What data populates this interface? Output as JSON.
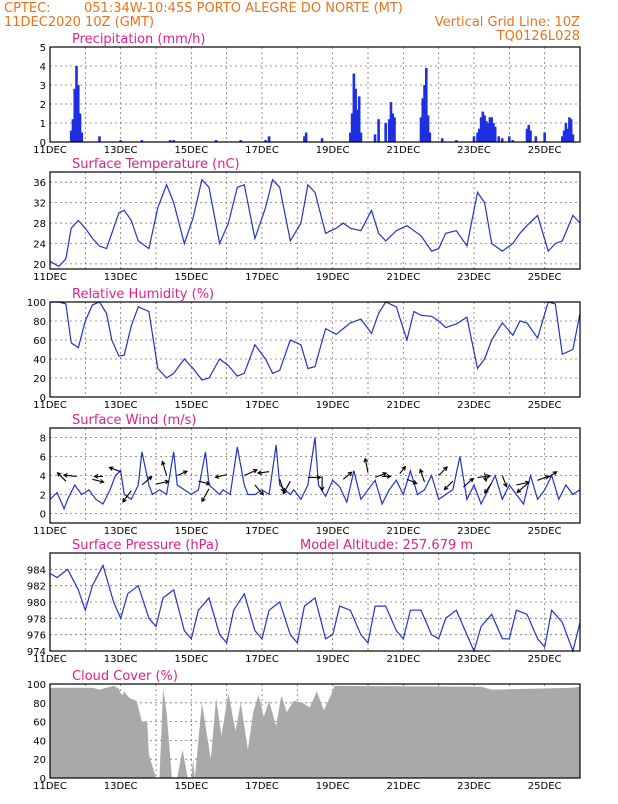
{
  "header": {
    "line1_left": "CPTEC:",
    "line1_center": "051:34W-10:45S  PORTO ALEGRE DO NORTE (MT)",
    "line2_left": "11DEC2020 10Z (GMT)",
    "line2_right": "Vertical Grid Line: 10Z",
    "line3_right": "TQ0126L028"
  },
  "x_ticks": [
    "11DEC",
    "13DEC",
    "15DEC",
    "17DEC",
    "19DEC",
    "21DEC",
    "23DEC",
    "25DEC"
  ],
  "colors": {
    "header": "#e8731a",
    "panel_title": "#e0208a",
    "line": "#2233cc",
    "bar": "#1f2fe0",
    "cloud": "#a9a9a9"
  },
  "chart_data": [
    {
      "type": "bar",
      "title": "Precipitation (mm/h)",
      "ylim": [
        0,
        5
      ],
      "yticks": [
        "0",
        "1",
        "2",
        "3",
        "4",
        "5"
      ],
      "x": [
        "11.6",
        "11.65",
        "11.7",
        "11.75",
        "11.8",
        "11.85",
        "11.9",
        "12.4",
        "13.0",
        "13.6",
        "14.4",
        "14.5",
        "15.7",
        "16.4",
        "17.1",
        "17.2",
        "18.2",
        "18.25",
        "18.7",
        "19.5",
        "19.55",
        "19.6",
        "19.65",
        "19.7",
        "19.75",
        "19.8",
        "20.2",
        "20.3",
        "20.5",
        "20.6",
        "20.65",
        "20.7",
        "20.75",
        "21.5",
        "21.55",
        "21.6",
        "21.65",
        "21.7",
        "21.75",
        "22.1",
        "22.5",
        "23.0",
        "23.1",
        "23.15",
        "23.2",
        "23.25",
        "23.3",
        "23.35",
        "23.4",
        "23.45",
        "23.5",
        "23.55",
        "23.6",
        "23.7",
        "23.8",
        "24.0",
        "24.1",
        "24.5",
        "24.55",
        "24.6",
        "24.75",
        "25.0",
        "25.5",
        "25.55",
        "25.6",
        "25.65",
        "25.7",
        "25.75",
        "25.8"
      ],
      "values": [
        0.6,
        1.2,
        2.8,
        4.0,
        3.0,
        1.5,
        0.5,
        0.3,
        0.1,
        0.1,
        0.1,
        0.1,
        0.1,
        0.1,
        0.1,
        0.3,
        0.3,
        0.5,
        0.2,
        0.5,
        1.5,
        3.6,
        2.8,
        1.7,
        2.4,
        0.5,
        0.4,
        1.2,
        1.0,
        1.2,
        2.1,
        1.5,
        1.3,
        1.3,
        2.3,
        3.0,
        3.9,
        1.4,
        0.5,
        0.2,
        0.1,
        0.3,
        0.5,
        0.7,
        1.3,
        1.6,
        1.4,
        1.1,
        1.0,
        1.3,
        1.3,
        1.0,
        0.8,
        0.3,
        0.2,
        0.3,
        0.1,
        0.7,
        0.9,
        0.6,
        0.3,
        0.5,
        0.3,
        0.6,
        1.0,
        0.7,
        1.3,
        1.2,
        0.4
      ]
    },
    {
      "type": "line",
      "title": "Surface Temperature (nC)",
      "ylim": [
        19,
        38
      ],
      "yticks": [
        "20",
        "24",
        "28",
        "32",
        "36"
      ],
      "x": [
        11.0,
        11.25,
        11.45,
        11.6,
        11.8,
        12.0,
        12.2,
        12.4,
        12.6,
        12.75,
        12.95,
        13.1,
        13.3,
        13.5,
        13.8,
        14.05,
        14.3,
        14.5,
        14.8,
        15.05,
        15.3,
        15.5,
        15.8,
        16.05,
        16.3,
        16.5,
        16.8,
        17.1,
        17.3,
        17.5,
        17.8,
        18.1,
        18.3,
        18.5,
        18.8,
        19.1,
        19.3,
        19.5,
        19.8,
        20.1,
        20.3,
        20.5,
        20.8,
        21.1,
        21.3,
        21.5,
        21.8,
        22.0,
        22.2,
        22.5,
        22.8,
        23.1,
        23.3,
        23.5,
        23.8,
        24.1,
        24.3,
        24.5,
        24.8,
        25.1,
        25.3,
        25.5,
        25.8,
        26.0
      ],
      "values": [
        20.5,
        19.5,
        21,
        27,
        28.5,
        27,
        25,
        23.5,
        23,
        26,
        30,
        30.5,
        28.5,
        24.5,
        23,
        31,
        35.5,
        32,
        24,
        29,
        36.5,
        35,
        24,
        28,
        35,
        35.5,
        25,
        31,
        36.5,
        35,
        24.5,
        28,
        35.5,
        34,
        26,
        27,
        28,
        27,
        26.5,
        30.5,
        26,
        24.5,
        26.5,
        27.5,
        26.5,
        25.5,
        22.5,
        23,
        26,
        26.5,
        23.5,
        34,
        32,
        24,
        22.5,
        24,
        26,
        27.5,
        29.5,
        22.5,
        24,
        24.5,
        29.5,
        28
      ]
    },
    {
      "type": "line",
      "title": "Relative Humidity (%)",
      "ylim": [
        0,
        100
      ],
      "yticks": [
        "0",
        "20",
        "40",
        "60",
        "80",
        "100"
      ],
      "x": [
        11.0,
        11.25,
        11.45,
        11.6,
        11.8,
        12.0,
        12.2,
        12.4,
        12.6,
        12.75,
        12.95,
        13.1,
        13.3,
        13.5,
        13.8,
        14.05,
        14.3,
        14.5,
        14.8,
        15.05,
        15.3,
        15.5,
        15.8,
        16.05,
        16.3,
        16.5,
        16.8,
        17.1,
        17.3,
        17.5,
        17.8,
        18.1,
        18.3,
        18.5,
        18.8,
        19.1,
        19.3,
        19.5,
        19.8,
        20.1,
        20.3,
        20.5,
        20.8,
        21.1,
        21.3,
        21.5,
        21.8,
        22.0,
        22.2,
        22.5,
        22.8,
        23.1,
        23.3,
        23.5,
        23.8,
        24.1,
        24.3,
        24.5,
        24.8,
        25.1,
        25.3,
        25.5,
        25.8,
        26.0
      ],
      "values": [
        100,
        100,
        98,
        57,
        52,
        80,
        97,
        100,
        88,
        60,
        43,
        44,
        75,
        95,
        90,
        30,
        20,
        25,
        40,
        30,
        18,
        20,
        40,
        33,
        22,
        25,
        55,
        40,
        25,
        28,
        60,
        55,
        30,
        32,
        72,
        66,
        72,
        78,
        82,
        67,
        88,
        100,
        95,
        60,
        90,
        86,
        85,
        80,
        73,
        77,
        84,
        30,
        40,
        60,
        78,
        65,
        80,
        78,
        62,
        100,
        98,
        45,
        50,
        88
      ]
    },
    {
      "type": "line",
      "title": "Surface Wind (m/s)",
      "ylim": [
        -1,
        9
      ],
      "yticks": [
        "0",
        "2",
        "4",
        "6",
        "8"
      ],
      "x": [
        11.0,
        11.2,
        11.4,
        11.5,
        11.7,
        11.9,
        12.1,
        12.3,
        12.5,
        12.7,
        12.85,
        13.0,
        13.1,
        13.3,
        13.5,
        13.6,
        13.8,
        13.9,
        14.1,
        14.3,
        14.5,
        14.6,
        14.8,
        15.0,
        15.2,
        15.4,
        15.5,
        15.8,
        15.9,
        16.1,
        16.3,
        16.5,
        16.6,
        16.8,
        17.0,
        17.2,
        17.4,
        17.5,
        17.8,
        17.9,
        18.1,
        18.3,
        18.5,
        18.6,
        18.8,
        19.0,
        19.2,
        19.4,
        19.6,
        19.8,
        20.0,
        20.2,
        20.4,
        20.6,
        20.8,
        21.0,
        21.2,
        21.4,
        21.6,
        21.8,
        22.0,
        22.2,
        22.4,
        22.6,
        22.8,
        23.0,
        23.2,
        23.4,
        23.6,
        23.8,
        24.0,
        24.2,
        24.4,
        24.6,
        24.8,
        25.0,
        25.2,
        25.4,
        25.6,
        25.8,
        26.0
      ],
      "values": [
        1.5,
        2.2,
        0.5,
        1.5,
        3.0,
        2.0,
        2.5,
        1.5,
        1.0,
        2.5,
        4.0,
        4.5,
        2.0,
        1.5,
        3.0,
        6.5,
        3.0,
        2.0,
        2.5,
        2.0,
        6.5,
        3.0,
        2.5,
        2.0,
        2.5,
        6.5,
        3.0,
        2.0,
        2.5,
        2.0,
        7.0,
        3.0,
        2.0,
        2.0,
        2.5,
        2.0,
        7.2,
        3.0,
        2.0,
        2.5,
        1.5,
        3.0,
        8.0,
        3.0,
        1.8,
        3.5,
        2.8,
        1.2,
        4.5,
        1.5,
        2.5,
        3.5,
        1.0,
        2.5,
        3.5,
        2.0,
        4.5,
        2.0,
        2.5,
        4.0,
        1.5,
        2.0,
        2.5,
        6.0,
        1.5,
        3.0,
        1.0,
        2.5,
        4.0,
        1.5,
        3.0,
        2.0,
        1.0,
        4.0,
        1.5,
        2.5,
        4.0,
        1.5,
        3.0,
        2.0,
        2.5
      ]
    },
    {
      "type": "line",
      "title": "Surface Pressure (hPa)",
      "annotation": "Model Altitude: 257.679 m",
      "ylim": [
        974,
        986
      ],
      "yticks": [
        "974",
        "976",
        "978",
        "980",
        "982",
        "984"
      ],
      "x": [
        11.0,
        11.2,
        11.5,
        11.8,
        12.0,
        12.2,
        12.5,
        12.8,
        13.0,
        13.2,
        13.5,
        13.8,
        14.0,
        14.2,
        14.5,
        14.8,
        15.0,
        15.2,
        15.5,
        15.8,
        16.0,
        16.2,
        16.5,
        16.8,
        17.0,
        17.2,
        17.5,
        17.8,
        18.0,
        18.2,
        18.5,
        18.8,
        19.0,
        19.2,
        19.5,
        19.8,
        20.0,
        20.2,
        20.5,
        20.8,
        21.0,
        21.2,
        21.5,
        21.8,
        22.0,
        22.2,
        22.5,
        22.8,
        23.0,
        23.2,
        23.5,
        23.8,
        24.0,
        24.2,
        24.5,
        24.8,
        25.0,
        25.2,
        25.5,
        25.8,
        26.0
      ],
      "values": [
        983.5,
        983,
        984,
        981.5,
        979,
        982,
        984.5,
        980,
        978,
        981,
        982,
        978,
        977,
        980.5,
        981.5,
        976.5,
        975.5,
        979,
        980.5,
        976,
        975,
        979,
        981,
        976.5,
        975.5,
        979,
        980,
        976,
        975,
        979.5,
        980.5,
        975.5,
        976,
        979.5,
        979,
        976,
        975,
        979.5,
        979.5,
        976.5,
        975.5,
        979,
        979,
        976,
        975.5,
        978,
        979,
        976,
        974,
        977,
        978.5,
        975.5,
        975.5,
        979,
        978.5,
        975.5,
        974.5,
        979,
        977.5,
        974,
        977.5
      ]
    },
    {
      "type": "area",
      "title": "Cloud Cover (%)",
      "ylim": [
        0,
        100
      ],
      "yticks": [
        "0",
        "20",
        "40",
        "60",
        "80",
        "100"
      ],
      "x": [
        11.0,
        12.2,
        12.4,
        12.8,
        12.95,
        13.0,
        13.05,
        13.1,
        13.25,
        13.45,
        13.6,
        13.75,
        13.8,
        14.0,
        14.1,
        14.2,
        14.3,
        14.45,
        14.6,
        14.75,
        14.9,
        15.0,
        15.05,
        15.1,
        15.3,
        15.55,
        15.7,
        15.85,
        16.05,
        16.25,
        16.4,
        16.6,
        16.75,
        16.9,
        17.05,
        17.2,
        17.4,
        17.55,
        17.7,
        17.9,
        18.15,
        18.35,
        18.55,
        18.75,
        18.95,
        19.05,
        23.2,
        23.5,
        25.8,
        26.0
      ],
      "values": [
        96,
        96,
        94,
        98,
        95,
        90,
        88,
        92,
        85,
        82,
        60,
        60,
        25,
        0,
        0,
        95,
        70,
        0,
        0,
        30,
        0,
        0,
        20,
        0,
        80,
        20,
        85,
        45,
        90,
        50,
        80,
        30,
        70,
        88,
        65,
        82,
        55,
        88,
        70,
        82,
        80,
        75,
        92,
        72,
        88,
        98,
        97,
        94,
        96,
        97
      ]
    }
  ]
}
